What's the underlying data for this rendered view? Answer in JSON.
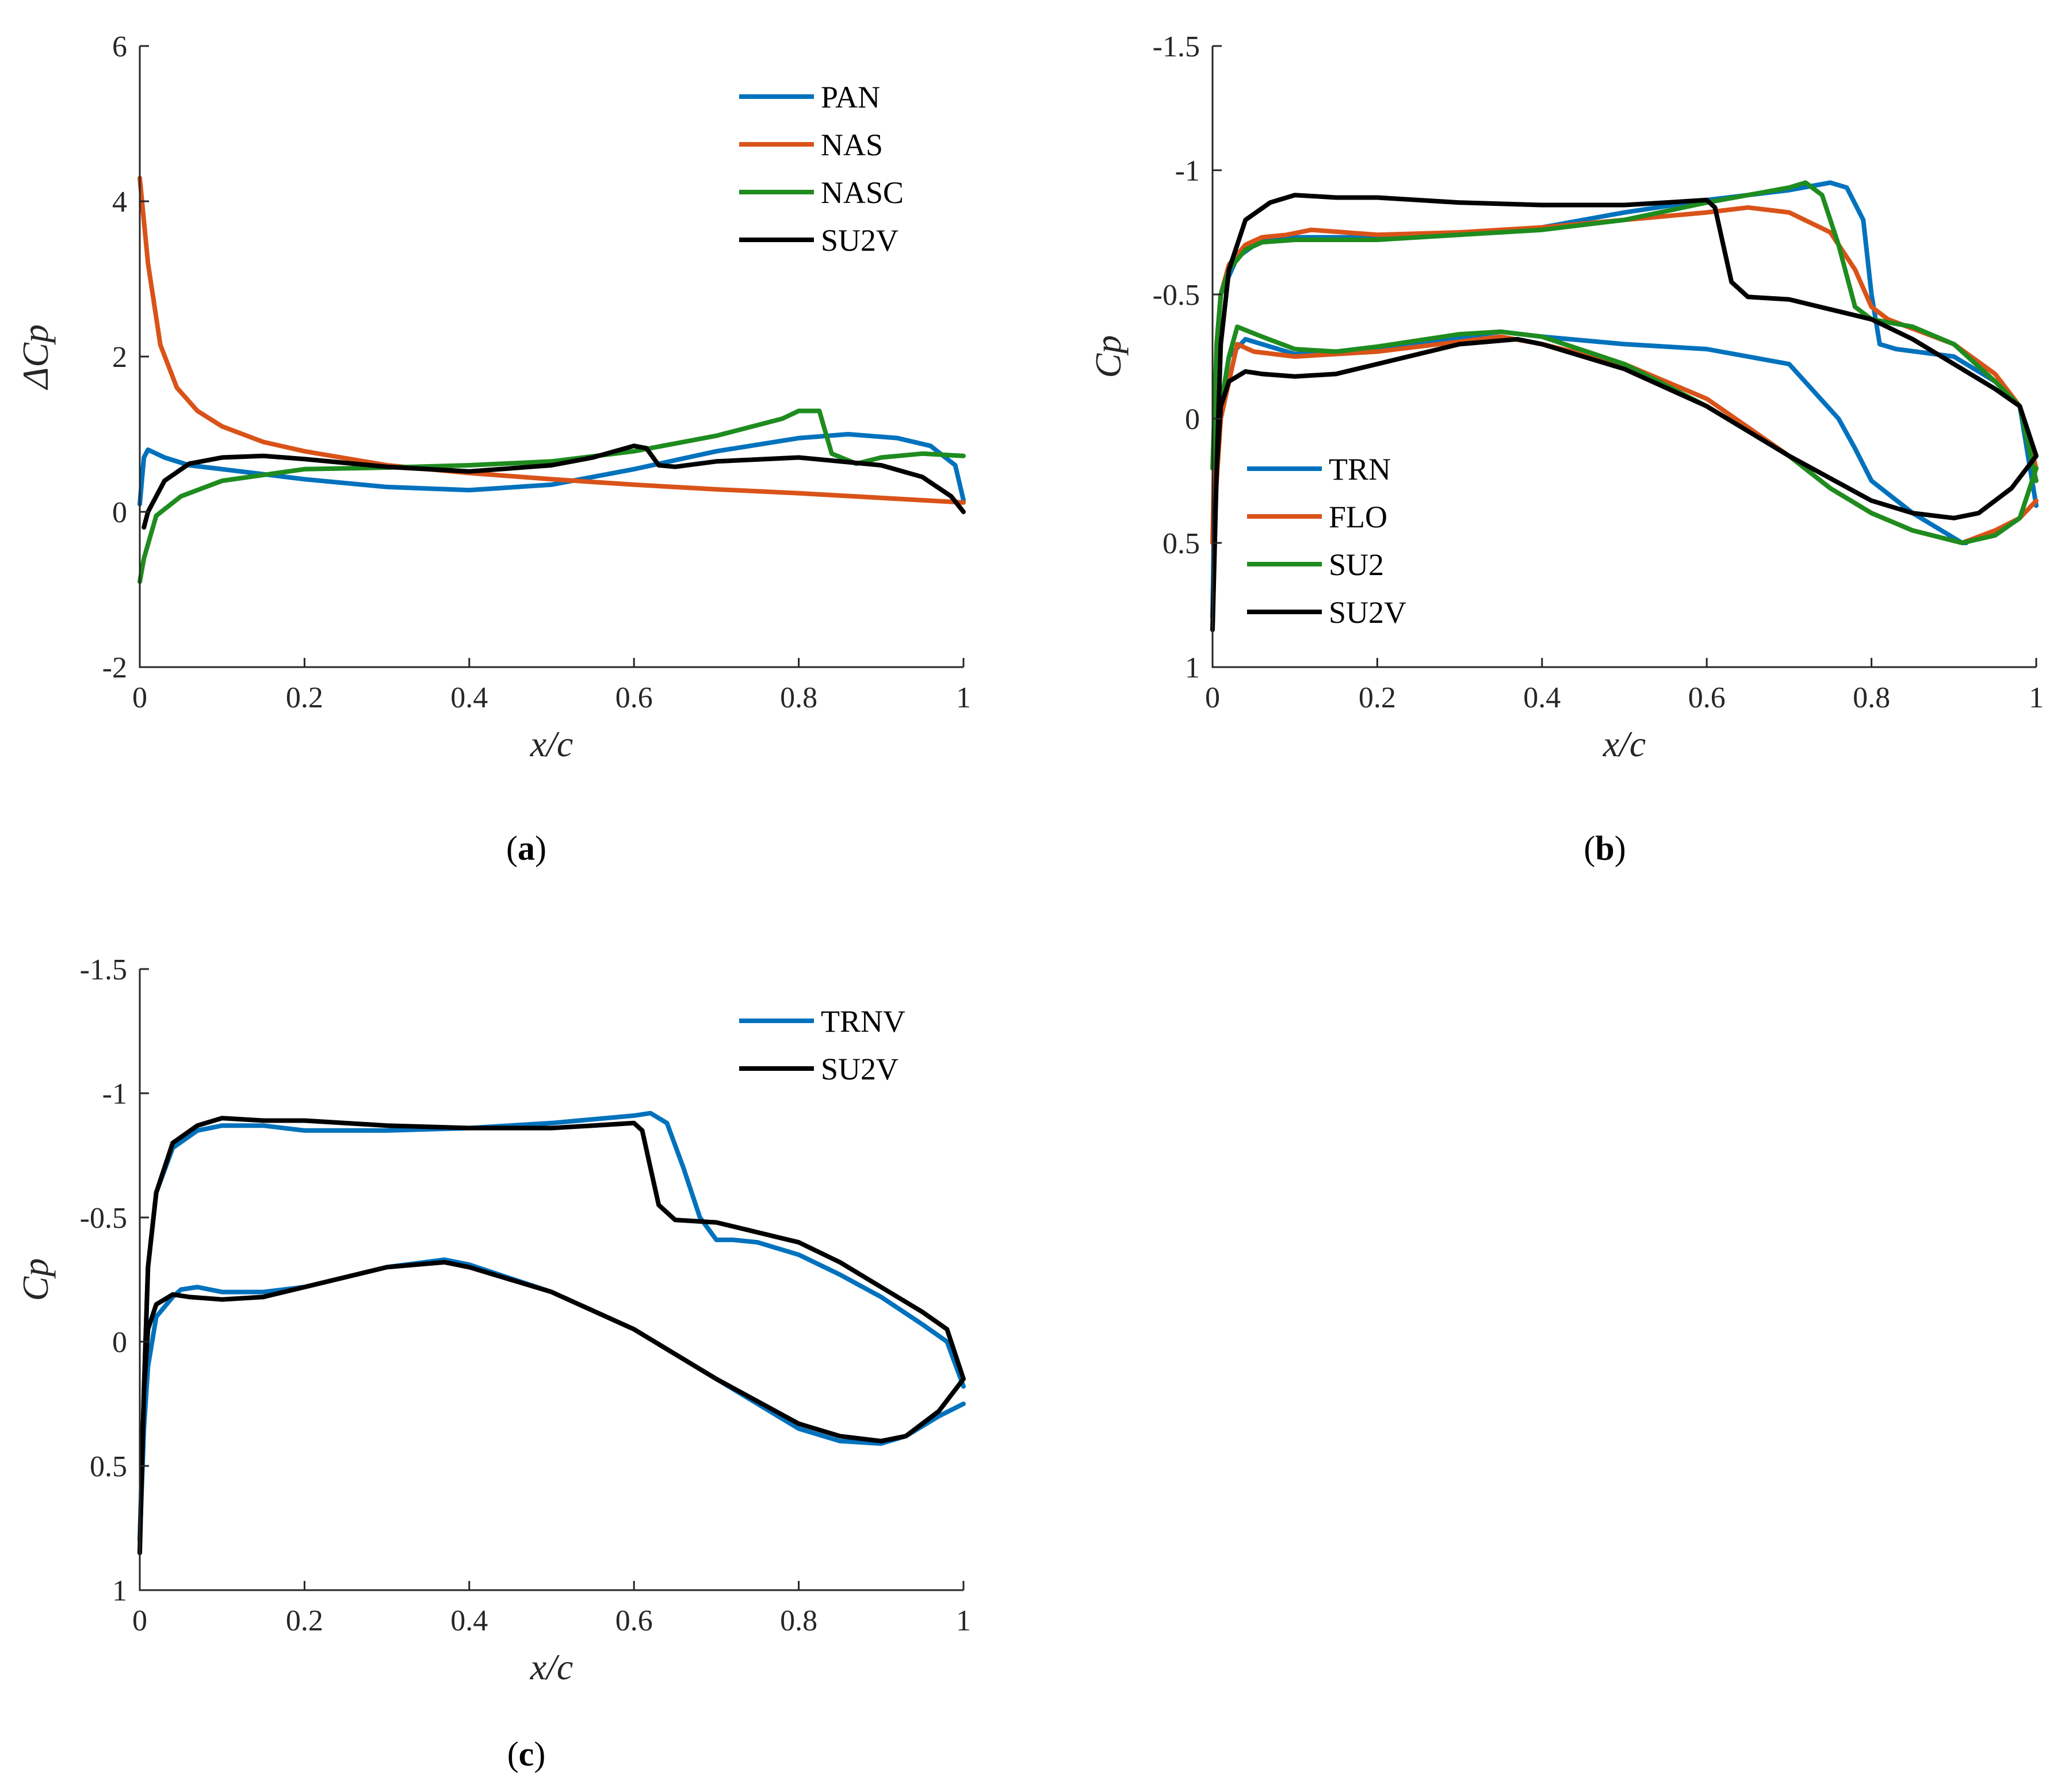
{
  "colors": {
    "blue": "#0072BD",
    "orange": "#D95319",
    "green": "#1E8C1E",
    "black": "#000000"
  },
  "chart_data": [
    {
      "type": "line",
      "caption_letter": "a",
      "xlabel": "x/c",
      "ylabel": "ΔCp",
      "xlim": [
        0,
        1
      ],
      "ylim": [
        -2,
        6
      ],
      "y_reversed": false,
      "xticks": [
        0,
        0.2,
        0.4,
        0.6,
        0.8,
        1
      ],
      "xtick_labels": [
        "0",
        "0.2",
        "0.4",
        "0.6",
        "0.8",
        "1"
      ],
      "yticks": [
        -2,
        0,
        2,
        4,
        6
      ],
      "ytick_labels": [
        "-2",
        "0",
        "2",
        "4",
        "6"
      ],
      "legend_position": "top-right",
      "series": [
        {
          "name": "PAN",
          "color": "blue",
          "x": [
            0,
            0.005,
            0.01,
            0.03,
            0.06,
            0.1,
            0.2,
            0.3,
            0.4,
            0.5,
            0.6,
            0.7,
            0.8,
            0.86,
            0.92,
            0.96,
            0.99,
            1.0
          ],
          "y": [
            0.1,
            0.7,
            0.8,
            0.7,
            0.6,
            0.55,
            0.42,
            0.32,
            0.28,
            0.35,
            0.55,
            0.78,
            0.95,
            1.0,
            0.95,
            0.85,
            0.6,
            0.15
          ]
        },
        {
          "name": "NAS",
          "color": "orange",
          "x": [
            0,
            0.01,
            0.025,
            0.045,
            0.07,
            0.1,
            0.15,
            0.2,
            0.3,
            0.4,
            0.5,
            0.6,
            0.7,
            0.8,
            0.9,
            1.0
          ],
          "y": [
            4.3,
            3.2,
            2.15,
            1.6,
            1.3,
            1.1,
            0.9,
            0.78,
            0.6,
            0.5,
            0.42,
            0.35,
            0.29,
            0.24,
            0.18,
            0.12
          ]
        },
        {
          "name": "NASC",
          "color": "green",
          "x": [
            0,
            0.005,
            0.02,
            0.05,
            0.1,
            0.2,
            0.3,
            0.4,
            0.5,
            0.6,
            0.7,
            0.78,
            0.8,
            0.825,
            0.84,
            0.87,
            0.9,
            0.95,
            1.0
          ],
          "y": [
            -0.9,
            -0.6,
            -0.05,
            0.2,
            0.4,
            0.55,
            0.57,
            0.6,
            0.65,
            0.78,
            0.98,
            1.2,
            1.3,
            1.3,
            0.75,
            0.62,
            0.7,
            0.75,
            0.72
          ]
        },
        {
          "name": "SU2V",
          "color": "black",
          "x": [
            0.005,
            0.01,
            0.03,
            0.06,
            0.1,
            0.15,
            0.2,
            0.3,
            0.4,
            0.5,
            0.55,
            0.6,
            0.615,
            0.63,
            0.65,
            0.7,
            0.8,
            0.9,
            0.95,
            0.985,
            1.0
          ],
          "y": [
            -0.2,
            0,
            0.4,
            0.62,
            0.7,
            0.72,
            0.68,
            0.58,
            0.52,
            0.6,
            0.7,
            0.85,
            0.82,
            0.6,
            0.58,
            0.65,
            0.7,
            0.6,
            0.45,
            0.2,
            0.0
          ]
        }
      ]
    },
    {
      "type": "line",
      "caption_letter": "b",
      "xlabel": "x/c",
      "ylabel": "Cp",
      "xlim": [
        0,
        1
      ],
      "ylim": [
        -1.5,
        1
      ],
      "y_reversed": true,
      "xticks": [
        0,
        0.2,
        0.4,
        0.6,
        0.8,
        1
      ],
      "xtick_labels": [
        "0",
        "0.2",
        "0.4",
        "0.6",
        "0.8",
        "1"
      ],
      "yticks": [
        -1.5,
        -1,
        -0.5,
        0,
        0.5,
        1
      ],
      "ytick_labels": [
        "-1.5",
        "-1",
        "-0.5",
        "0",
        "0.5",
        "1"
      ],
      "legend_position": "bottom-left",
      "series": [
        {
          "name": "TRN",
          "color": "blue",
          "x": [
            0.915,
            0.91,
            0.85,
            0.8,
            0.78,
            0.76,
            0.7,
            0.6,
            0.5,
            0.4,
            0.35,
            0.2,
            0.1,
            0.04,
            0.02,
            0.01,
            0.003,
            0.0,
            0.005,
            0.01,
            0.03,
            0.06,
            0.1,
            0.2,
            0.3,
            0.4,
            0.5,
            0.6,
            0.7,
            0.75,
            0.77,
            0.79,
            0.8,
            0.81,
            0.83,
            0.9,
            0.95,
            0.98,
            1.0
          ],
          "y": [
            0.5,
            0.5,
            0.38,
            0.25,
            0.12,
            0.0,
            -0.22,
            -0.28,
            -0.3,
            -0.33,
            -0.35,
            -0.28,
            -0.26,
            -0.32,
            -0.25,
            -0.05,
            0.25,
            0.8,
            -0.3,
            -0.5,
            -0.65,
            -0.72,
            -0.73,
            -0.73,
            -0.74,
            -0.77,
            -0.83,
            -0.88,
            -0.92,
            -0.95,
            -0.93,
            -0.8,
            -0.5,
            -0.3,
            -0.28,
            -0.25,
            -0.15,
            -0.05,
            0.35
          ]
        },
        {
          "name": "FLO",
          "color": "orange",
          "x": [
            1.0,
            0.98,
            0.95,
            0.91,
            0.85,
            0.8,
            0.75,
            0.7,
            0.6,
            0.5,
            0.4,
            0.35,
            0.2,
            0.1,
            0.05,
            0.03,
            0.02,
            0.01,
            0.0,
            0.005,
            0.01,
            0.02,
            0.04,
            0.06,
            0.09,
            0.12,
            0.2,
            0.3,
            0.4,
            0.5,
            0.6,
            0.65,
            0.7,
            0.75,
            0.78,
            0.8,
            0.82,
            0.9,
            0.95,
            0.98,
            1.0
          ],
          "y": [
            0.33,
            0.4,
            0.45,
            0.5,
            0.45,
            0.38,
            0.28,
            0.15,
            -0.08,
            -0.22,
            -0.3,
            -0.33,
            -0.27,
            -0.25,
            -0.27,
            -0.3,
            -0.15,
            0.0,
            0.5,
            -0.3,
            -0.5,
            -0.62,
            -0.7,
            -0.73,
            -0.74,
            -0.76,
            -0.74,
            -0.75,
            -0.77,
            -0.8,
            -0.83,
            -0.85,
            -0.83,
            -0.75,
            -0.6,
            -0.45,
            -0.4,
            -0.3,
            -0.18,
            -0.05,
            0.2
          ]
        },
        {
          "name": "SU2",
          "color": "green",
          "x": [
            1.0,
            0.98,
            0.95,
            0.91,
            0.85,
            0.8,
            0.75,
            0.7,
            0.6,
            0.5,
            0.4,
            0.35,
            0.3,
            0.2,
            0.15,
            0.1,
            0.06,
            0.03,
            0.02,
            0.01,
            0.0,
            0.005,
            0.01,
            0.02,
            0.04,
            0.06,
            0.1,
            0.2,
            0.3,
            0.4,
            0.5,
            0.6,
            0.65,
            0.7,
            0.72,
            0.74,
            0.76,
            0.78,
            0.8,
            0.85,
            0.9,
            0.95,
            0.98,
            1.0
          ],
          "y": [
            0.2,
            0.4,
            0.47,
            0.5,
            0.45,
            0.38,
            0.28,
            0.15,
            -0.05,
            -0.22,
            -0.33,
            -0.35,
            -0.34,
            -0.29,
            -0.27,
            -0.28,
            -0.33,
            -0.37,
            -0.25,
            -0.05,
            0.2,
            -0.3,
            -0.5,
            -0.6,
            -0.68,
            -0.71,
            -0.72,
            -0.72,
            -0.74,
            -0.76,
            -0.8,
            -0.87,
            -0.9,
            -0.93,
            -0.95,
            -0.9,
            -0.7,
            -0.45,
            -0.4,
            -0.37,
            -0.3,
            -0.15,
            -0.05,
            0.25
          ]
        },
        {
          "name": "SU2V",
          "color": "black",
          "x": [
            1.0,
            0.97,
            0.93,
            0.9,
            0.85,
            0.8,
            0.7,
            0.6,
            0.5,
            0.4,
            0.37,
            0.3,
            0.2,
            0.15,
            0.1,
            0.06,
            0.04,
            0.02,
            0.01,
            0.005,
            0.0,
            0.005,
            0.01,
            0.02,
            0.04,
            0.07,
            0.1,
            0.15,
            0.2,
            0.3,
            0.4,
            0.5,
            0.55,
            0.6,
            0.61,
            0.62,
            0.63,
            0.65,
            0.7,
            0.8,
            0.85,
            0.9,
            0.95,
            0.98,
            1.0
          ],
          "y": [
            0.15,
            0.28,
            0.38,
            0.4,
            0.38,
            0.33,
            0.15,
            -0.05,
            -0.2,
            -0.3,
            -0.32,
            -0.3,
            -0.22,
            -0.18,
            -0.17,
            -0.18,
            -0.19,
            -0.15,
            -0.05,
            0.2,
            0.85,
            0.2,
            -0.3,
            -0.6,
            -0.8,
            -0.87,
            -0.9,
            -0.89,
            -0.89,
            -0.87,
            -0.86,
            -0.86,
            -0.87,
            -0.88,
            -0.85,
            -0.7,
            -0.55,
            -0.49,
            -0.48,
            -0.4,
            -0.32,
            -0.22,
            -0.12,
            -0.05,
            0.15
          ]
        }
      ]
    },
    {
      "type": "line",
      "caption_letter": "c",
      "xlabel": "x/c",
      "ylabel": "Cp",
      "xlim": [
        0,
        1
      ],
      "ylim": [
        -1.5,
        1
      ],
      "y_reversed": true,
      "xticks": [
        0,
        0.2,
        0.4,
        0.6,
        0.8,
        1
      ],
      "xtick_labels": [
        "0",
        "0.2",
        "0.4",
        "0.6",
        "0.8",
        "1"
      ],
      "yticks": [
        -1.5,
        -1,
        -0.5,
        0,
        0.5,
        1
      ],
      "ytick_labels": [
        "-1.5",
        "-1",
        "-0.5",
        "0",
        "0.5",
        "1"
      ],
      "legend_position": "top-right",
      "series": [
        {
          "name": "TRNV",
          "color": "blue",
          "x": [
            1.0,
            0.97,
            0.93,
            0.9,
            0.85,
            0.8,
            0.7,
            0.6,
            0.5,
            0.4,
            0.37,
            0.3,
            0.2,
            0.15,
            0.1,
            0.07,
            0.05,
            0.04,
            0.02,
            0.01,
            0.005,
            0.0,
            0.005,
            0.01,
            0.02,
            0.04,
            0.07,
            0.1,
            0.15,
            0.2,
            0.3,
            0.4,
            0.5,
            0.6,
            0.62,
            0.64,
            0.66,
            0.68,
            0.7,
            0.72,
            0.75,
            0.8,
            0.85,
            0.9,
            0.95,
            0.98,
            1.0
          ],
          "y": [
            0.25,
            0.3,
            0.38,
            0.41,
            0.4,
            0.35,
            0.15,
            -0.05,
            -0.2,
            -0.31,
            -0.33,
            -0.3,
            -0.22,
            -0.2,
            -0.2,
            -0.22,
            -0.21,
            -0.18,
            -0.1,
            0.1,
            0.35,
            0.8,
            0.2,
            -0.3,
            -0.6,
            -0.78,
            -0.85,
            -0.87,
            -0.87,
            -0.85,
            -0.85,
            -0.86,
            -0.88,
            -0.91,
            -0.92,
            -0.88,
            -0.7,
            -0.5,
            -0.41,
            -0.41,
            -0.4,
            -0.35,
            -0.27,
            -0.18,
            -0.07,
            0.0,
            0.18
          ]
        },
        {
          "name": "SU2V",
          "color": "black",
          "x": [
            1.0,
            0.97,
            0.93,
            0.9,
            0.85,
            0.8,
            0.7,
            0.6,
            0.5,
            0.4,
            0.37,
            0.3,
            0.2,
            0.15,
            0.1,
            0.06,
            0.04,
            0.02,
            0.01,
            0.005,
            0.0,
            0.005,
            0.01,
            0.02,
            0.04,
            0.07,
            0.1,
            0.15,
            0.2,
            0.3,
            0.4,
            0.5,
            0.55,
            0.6,
            0.61,
            0.62,
            0.63,
            0.65,
            0.7,
            0.8,
            0.85,
            0.9,
            0.95,
            0.98,
            1.0
          ],
          "y": [
            0.15,
            0.28,
            0.38,
            0.4,
            0.38,
            0.33,
            0.15,
            -0.05,
            -0.2,
            -0.3,
            -0.32,
            -0.3,
            -0.22,
            -0.18,
            -0.17,
            -0.18,
            -0.19,
            -0.15,
            -0.05,
            0.2,
            0.85,
            0.2,
            -0.3,
            -0.6,
            -0.8,
            -0.87,
            -0.9,
            -0.89,
            -0.89,
            -0.87,
            -0.86,
            -0.86,
            -0.87,
            -0.88,
            -0.85,
            -0.7,
            -0.55,
            -0.49,
            -0.48,
            -0.4,
            -0.32,
            -0.22,
            -0.12,
            -0.05,
            0.15
          ]
        }
      ]
    }
  ]
}
